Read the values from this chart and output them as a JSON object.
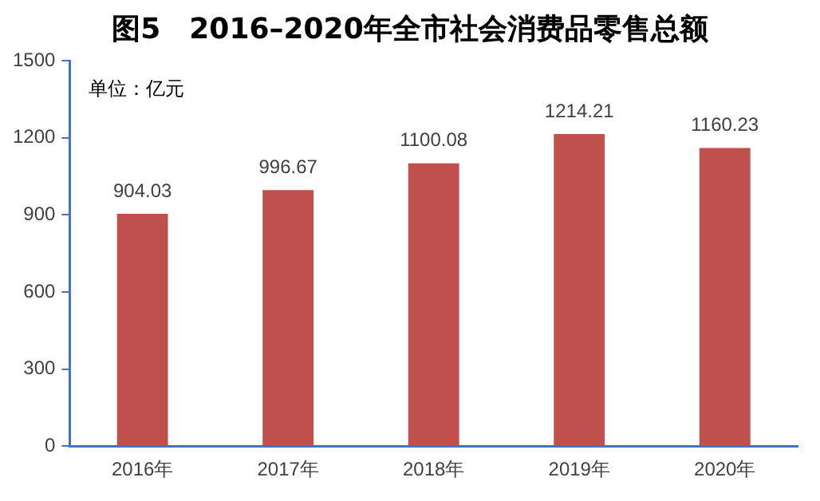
{
  "chart_data": {
    "type": "bar",
    "title": "图5　2016–2020年全市社会消费品零售总额",
    "categories": [
      "2016年",
      "2017年",
      "2018年",
      "2019年",
      "2020年"
    ],
    "values": [
      904.03,
      996.67,
      1100.08,
      1214.21,
      1160.23
    ],
    "color": "#c0504d",
    "ylim": [
      0,
      1500
    ],
    "yticks": [
      0,
      300,
      600,
      900,
      1200,
      1500
    ],
    "grid": false,
    "legend": false,
    "data_labels": true,
    "annotations": [
      "单位：亿元"
    ]
  }
}
